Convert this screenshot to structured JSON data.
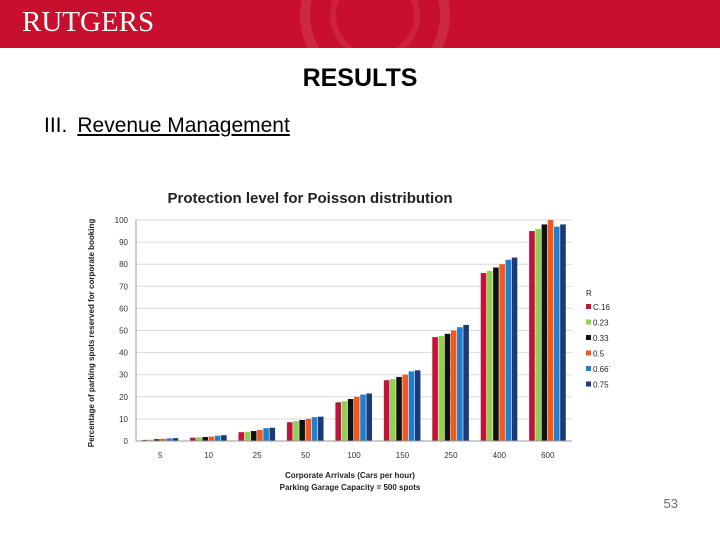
{
  "header": {
    "logo_text": "RUTGERS",
    "brand_color": "#c8102e"
  },
  "slide": {
    "title": "RESULTS",
    "subtitle_number": "III.",
    "subtitle_text": "Revenue Management",
    "page_number": "53"
  },
  "chart_data": {
    "type": "bar",
    "title": "Protection level for Poisson distribution",
    "xlabel": "Corporate Arrivals (Cars per hour)",
    "xlabel2": "Parking Garage Capacity = 500 spots",
    "ylabel": "Percentage of parking spots reserved for corporate booking",
    "ylim": [
      0,
      100
    ],
    "yticks": [
      0,
      10,
      20,
      30,
      40,
      50,
      60,
      70,
      80,
      90,
      100
    ],
    "grid": true,
    "legend_position": "right",
    "legend_title": "R",
    "categories": [
      "5",
      "10",
      "25",
      "50",
      "100",
      "150",
      "250",
      "400",
      "600"
    ],
    "series": [
      {
        "name": "C.166",
        "color": "#c0143c",
        "values": [
          0.5,
          1.5,
          4,
          8.5,
          17.5,
          27.5,
          47,
          76,
          95
        ]
      },
      {
        "name": "0.23",
        "color": "#92d050",
        "values": [
          0.6,
          1.6,
          4.2,
          9,
          18,
          28,
          47.5,
          77,
          96
        ]
      },
      {
        "name": "0.33",
        "color": "#111111",
        "values": [
          0.8,
          1.8,
          4.5,
          9.5,
          19,
          29,
          48.5,
          78.5,
          98
        ]
      },
      {
        "name": "0.5",
        "color": "#f05a22",
        "values": [
          1,
          2,
          5,
          10,
          20,
          30,
          50,
          80,
          100
        ]
      },
      {
        "name": "0.667",
        "color": "#1f7fd1",
        "values": [
          1.2,
          2.4,
          5.8,
          10.8,
          21,
          31.5,
          51.5,
          82,
          97
        ]
      },
      {
        "name": "0.75",
        "color": "#1a3a7a",
        "values": [
          1.3,
          2.6,
          6,
          11,
          21.5,
          32,
          52.5,
          83,
          98
        ]
      }
    ]
  }
}
